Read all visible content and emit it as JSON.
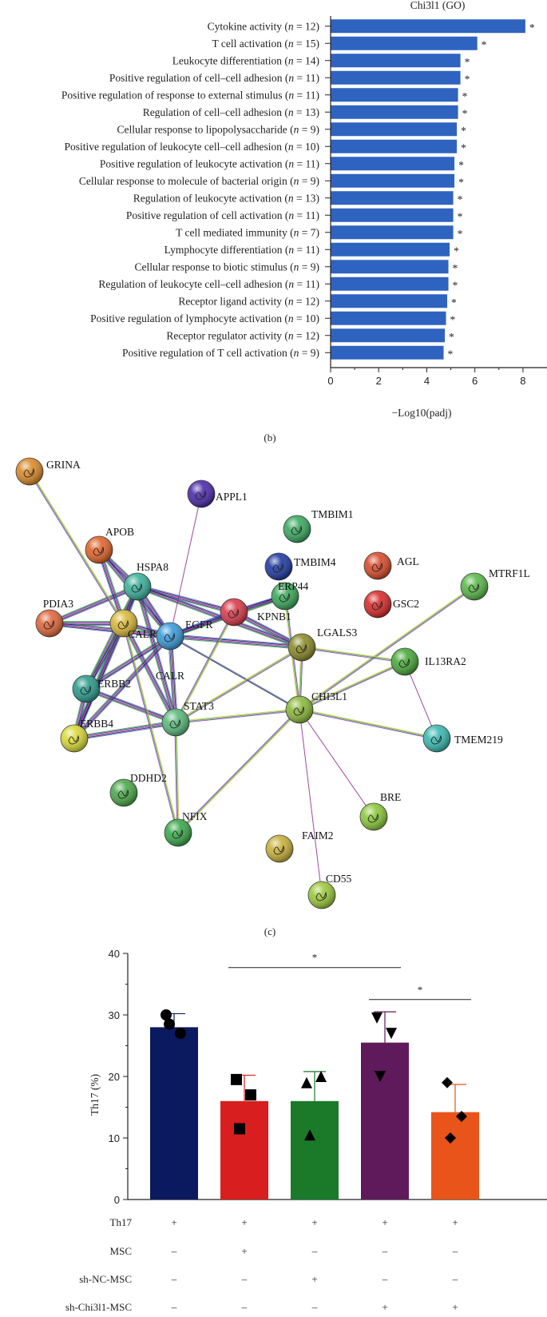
{
  "panel_b": {
    "label": "(b)",
    "chart_data": {
      "type": "bar",
      "orientation": "horizontal",
      "title": "Chi3l1 (GO)",
      "xlabel": "−Log10(padj)",
      "xlim": [
        0,
        9
      ],
      "xticks": [
        0,
        2,
        4,
        6,
        8
      ],
      "bar_color": "#2f63c0",
      "highlight_color": "#d8262a",
      "categories": [
        {
          "text": "Cytokine activity",
          "n": "12",
          "value": 8.1,
          "highlight": false
        },
        {
          "text": "T cell activation",
          "n": "15",
          "value": 6.1,
          "highlight": false
        },
        {
          "text": "Leukocyte differentiation",
          "n": "14",
          "value": 5.4,
          "highlight": false
        },
        {
          "text": "Positive regulation of cell–cell adhesion",
          "n": "11",
          "value": 5.4,
          "highlight": false
        },
        {
          "text": "Positive regulation of response to external stimulus",
          "n": "11",
          "value": 5.3,
          "highlight": false
        },
        {
          "text": "Regulation of cell–cell adhesion",
          "n": "13",
          "value": 5.3,
          "highlight": false
        },
        {
          "text": "Cellular response to lipopolysaccharide",
          "n": "9",
          "value": 5.25,
          "highlight": false
        },
        {
          "text": "Positive regulation of leukocyte cell–cell adhesion",
          "n": "10",
          "value": 5.25,
          "highlight": false
        },
        {
          "text": "Positive regulation of leukocyte activation",
          "n": "11",
          "value": 5.15,
          "highlight": false
        },
        {
          "text": "Cellular response to molecule of bacterial origin",
          "n": "9",
          "value": 5.15,
          "highlight": false
        },
        {
          "text": "Regulation of leukocyte activation",
          "n": "13",
          "value": 5.1,
          "highlight": false
        },
        {
          "text": "Positive regulation of cell activation",
          "n": "11",
          "value": 5.1,
          "highlight": false
        },
        {
          "text": "T cell mediated immunity",
          "n": "7",
          "value": 5.1,
          "highlight": false
        },
        {
          "text": "Lymphocyte differentiation",
          "n": "11",
          "value": 4.95,
          "highlight": true
        },
        {
          "text": "Cellular response to biotic stimulus",
          "n": "9",
          "value": 4.9,
          "highlight": false
        },
        {
          "text": "Regulation of leukocyte cell–cell adhesion",
          "n": "11",
          "value": 4.9,
          "highlight": false
        },
        {
          "text": "Receptor ligand activity",
          "n": "12",
          "value": 4.85,
          "highlight": false
        },
        {
          "text": "Positive regulation of lymphocyte activation",
          "n": "10",
          "value": 4.8,
          "highlight": false
        },
        {
          "text": "Receptor regulator activity",
          "n": "12",
          "value": 4.75,
          "highlight": false
        },
        {
          "text": "Positive regulation of T cell activation",
          "n": "9",
          "value": 4.7,
          "highlight": false
        }
      ],
      "significance_mark": "*"
    }
  },
  "panel_c": {
    "label": "(c)",
    "nodes": [
      {
        "id": "GRINA",
        "color": "#d9892a"
      },
      {
        "id": "APPL1",
        "color": "#4a2aa8"
      },
      {
        "id": "APOB",
        "color": "#e0632a"
      },
      {
        "id": "TMBIM1",
        "color": "#3aa860"
      },
      {
        "id": "HSPA8",
        "color": "#3bb09a"
      },
      {
        "id": "TMBIM4",
        "color": "#1f3aa0"
      },
      {
        "id": "AGL",
        "color": "#d84a2a"
      },
      {
        "id": "MTRF1L",
        "color": "#5ab84a"
      },
      {
        "id": "ERP44",
        "color": "#3aa85a"
      },
      {
        "id": "KPNB1",
        "color": "#d83a4a"
      },
      {
        "id": "GSC2",
        "color": "#d82a2a"
      },
      {
        "id": "PDIA3",
        "color": "#e0663a"
      },
      {
        "id": "CALR",
        "color": "#d8b83a"
      },
      {
        "id": "EGFR",
        "color": "#3a9ad8"
      },
      {
        "id": "LGALS3",
        "color": "#8a8a2a"
      },
      {
        "id": "IL13RA2",
        "color": "#4aa83a"
      },
      {
        "id": "ERBB2",
        "color": "#2a9a8a"
      },
      {
        "id": "STAT3",
        "color": "#5ab87a"
      },
      {
        "id": "CHI3L1",
        "color": "#8ab83a"
      },
      {
        "id": "TMEM219",
        "color": "#3ab8b0"
      },
      {
        "id": "ERBB4",
        "color": "#d8d83a"
      },
      {
        "id": "DDHD2",
        "color": "#4aa84a"
      },
      {
        "id": "NFIX",
        "color": "#3aa84a"
      },
      {
        "id": "BRE",
        "color": "#8ac83a"
      },
      {
        "id": "FAIM2",
        "color": "#c8b03a"
      },
      {
        "id": "CD55",
        "color": "#9ac83a"
      }
    ],
    "extra_labels": [
      {
        "id": "CALR2",
        "text": "CALR"
      }
    ],
    "highlight_nodes": [
      "STAT3",
      "CHI3L1"
    ],
    "highlight_color": "#d8262a"
  },
  "panel_d": {
    "chart_data": {
      "type": "bar",
      "ylabel": "Th17 (%)",
      "ylim": [
        0,
        40
      ],
      "yticks": [
        0,
        10,
        20,
        30,
        40
      ],
      "groups": [
        {
          "mean": 28,
          "err": 2.2,
          "points": [
            30,
            27,
            28.5
          ],
          "color": "#0b1a5e",
          "marker": "circle"
        },
        {
          "mean": 16,
          "err": 4.2,
          "points": [
            19.5,
            17,
            11.5
          ],
          "color": "#d81e1e",
          "marker": "square"
        },
        {
          "mean": 16,
          "err": 4.8,
          "points": [
            19,
            20,
            10.5
          ],
          "color": "#1a7a2a",
          "marker": "triangle-up"
        },
        {
          "mean": 25.5,
          "err": 5.0,
          "points": [
            29.5,
            27,
            20
          ],
          "color": "#5e1a5a",
          "marker": "triangle-down"
        },
        {
          "mean": 14.2,
          "err": 4.5,
          "points": [
            19,
            13.5,
            10
          ],
          "color": "#e8541a",
          "marker": "diamond"
        }
      ],
      "significance": [
        {
          "from": 1,
          "to": 3,
          "y": 37.7,
          "mark": "*"
        },
        {
          "from": 3,
          "to": 4,
          "y": 32.5,
          "mark": "*"
        }
      ],
      "conditions": [
        {
          "name": "Th17",
          "values": [
            "+",
            "+",
            "+",
            "+",
            "+"
          ]
        },
        {
          "name": "MSC",
          "values": [
            "–",
            "+",
            "–",
            "–",
            "–"
          ]
        },
        {
          "name": "sh-NC-MSC",
          "values": [
            "–",
            "–",
            "+",
            "–",
            "–"
          ]
        },
        {
          "name": "sh-Chi3l1-MSC",
          "values": [
            "–",
            "–",
            "–",
            "+",
            "+"
          ]
        }
      ]
    }
  }
}
